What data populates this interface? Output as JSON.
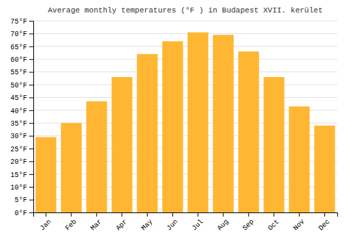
{
  "chart_data": {
    "type": "bar",
    "title": "Average monthly temperatures (°F ) in Budapest XVII. kerület",
    "categories": [
      "Jan",
      "Feb",
      "Mar",
      "Apr",
      "May",
      "Jun",
      "Jul",
      "Aug",
      "Sep",
      "Oct",
      "Nov",
      "Dec"
    ],
    "values": [
      29.5,
      35.0,
      43.5,
      53.0,
      62.0,
      67.0,
      70.5,
      69.5,
      63.0,
      53.0,
      41.5,
      34.0
    ],
    "color": "#FFB733",
    "ylim": [
      0,
      75
    ],
    "yticks": [
      {
        "value": 0,
        "label": "0°F"
      },
      {
        "value": 5,
        "label": "5°F"
      },
      {
        "value": 10,
        "label": "10°F"
      },
      {
        "value": 15,
        "label": "15°F"
      },
      {
        "value": 20,
        "label": "20°F"
      },
      {
        "value": 25,
        "label": "25°F"
      },
      {
        "value": 30,
        "label": "30°F"
      },
      {
        "value": 35,
        "label": "35°F"
      },
      {
        "value": 40,
        "label": "40°F"
      },
      {
        "value": 45,
        "label": "45°F"
      },
      {
        "value": 50,
        "label": "50°F"
      },
      {
        "value": 55,
        "label": "55°F"
      },
      {
        "value": 60,
        "label": "60°F"
      },
      {
        "value": 65,
        "label": "65°F"
      },
      {
        "value": 70,
        "label": "70°F"
      },
      {
        "value": 75,
        "label": "75°F"
      }
    ],
    "grid": true
  }
}
